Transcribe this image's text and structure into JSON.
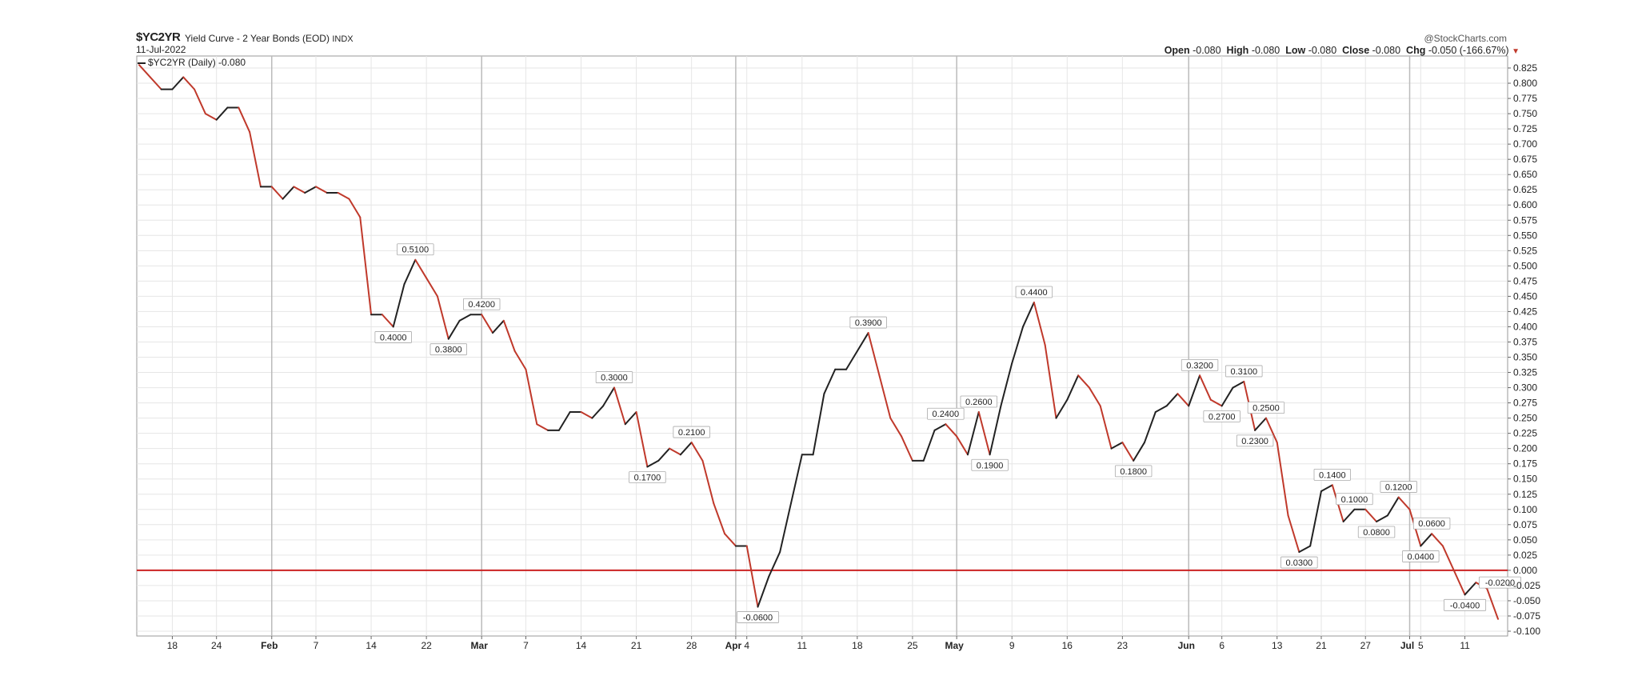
{
  "header": {
    "symbol": "$YC2YR",
    "title": "Yield Curve - 2 Year Bonds (EOD)",
    "exchange": "INDX",
    "date": "11-Jul-2022",
    "brand": "@StockCharts.com",
    "open_label": "Open",
    "open_value": "-0.080",
    "high_label": "High",
    "high_value": "-0.080",
    "low_label": "Low",
    "low_value": "-0.080",
    "close_label": "Close",
    "close_value": "-0.080",
    "chg_label": "Chg",
    "chg_value": "-0.050 (-166.67%)",
    "chg_arrow": "▼"
  },
  "legend": {
    "label": "$YC2YR (Daily) -0.080"
  },
  "colors": {
    "up": "#222222",
    "down": "#c0392b",
    "zero_line": "#cc2222",
    "grid": "#e6e6e6",
    "month_grid": "#bbbbbb"
  },
  "chart_data": {
    "type": "line",
    "ylim": [
      -0.1,
      0.825
    ],
    "y_ticks": [
      "0.825",
      "0.800",
      "0.775",
      "0.750",
      "0.725",
      "0.700",
      "0.675",
      "0.650",
      "0.625",
      "0.600",
      "0.575",
      "0.550",
      "0.525",
      "0.500",
      "0.475",
      "0.450",
      "0.425",
      "0.400",
      "0.375",
      "0.350",
      "0.325",
      "0.300",
      "0.275",
      "0.250",
      "0.225",
      "0.200",
      "0.175",
      "0.150",
      "0.125",
      "0.100",
      "0.075",
      "0.050",
      "0.025",
      "0.000",
      "-0.025",
      "-0.050",
      "-0.075",
      "-0.100"
    ],
    "x_ticks": [
      {
        "label": "18",
        "i": 3
      },
      {
        "label": "24",
        "i": 7
      },
      {
        "label": "Feb",
        "i": 12,
        "bold": true
      },
      {
        "label": "7",
        "i": 16
      },
      {
        "label": "14",
        "i": 21
      },
      {
        "label": "22",
        "i": 26
      },
      {
        "label": "Mar",
        "i": 31,
        "bold": true
      },
      {
        "label": "7",
        "i": 35
      },
      {
        "label": "14",
        "i": 40
      },
      {
        "label": "21",
        "i": 45
      },
      {
        "label": "28",
        "i": 50
      },
      {
        "label": "Apr",
        "i": 54,
        "bold": true
      },
      {
        "label": "4",
        "i": 55
      },
      {
        "label": "11",
        "i": 60
      },
      {
        "label": "18",
        "i": 65
      },
      {
        "label": "25",
        "i": 70
      },
      {
        "label": "May",
        "i": 74,
        "bold": true
      },
      {
        "label": "9",
        "i": 79
      },
      {
        "label": "16",
        "i": 84
      },
      {
        "label": "23",
        "i": 89
      },
      {
        "label": "Jun",
        "i": 95,
        "bold": true
      },
      {
        "label": "6",
        "i": 98
      },
      {
        "label": "13",
        "i": 103
      },
      {
        "label": "21",
        "i": 107
      },
      {
        "label": "27",
        "i": 111
      },
      {
        "label": "Jul",
        "i": 115,
        "bold": true
      },
      {
        "label": "5",
        "i": 116
      },
      {
        "label": "11",
        "i": 120
      }
    ],
    "values": [
      0.83,
      0.81,
      0.79,
      0.79,
      0.81,
      0.79,
      0.75,
      0.74,
      0.76,
      0.76,
      0.72,
      0.63,
      0.63,
      0.61,
      0.63,
      0.62,
      0.63,
      0.62,
      0.62,
      0.61,
      0.58,
      0.42,
      0.42,
      0.4,
      0.47,
      0.51,
      0.48,
      0.45,
      0.38,
      0.41,
      0.42,
      0.42,
      0.39,
      0.41,
      0.36,
      0.33,
      0.24,
      0.23,
      0.23,
      0.26,
      0.26,
      0.25,
      0.27,
      0.3,
      0.24,
      0.26,
      0.17,
      0.18,
      0.2,
      0.19,
      0.21,
      0.18,
      0.11,
      0.06,
      0.04,
      0.04,
      -0.06,
      -0.01,
      0.03,
      0.11,
      0.19,
      0.19,
      0.29,
      0.33,
      0.33,
      0.36,
      0.39,
      0.32,
      0.25,
      0.22,
      0.18,
      0.18,
      0.23,
      0.24,
      0.22,
      0.19,
      0.26,
      0.19,
      0.27,
      0.34,
      0.4,
      0.44,
      0.37,
      0.25,
      0.28,
      0.32,
      0.3,
      0.27,
      0.2,
      0.21,
      0.18,
      0.21,
      0.26,
      0.27,
      0.29,
      0.27,
      0.32,
      0.28,
      0.27,
      0.3,
      0.31,
      0.23,
      0.25,
      0.21,
      0.09,
      0.03,
      0.04,
      0.13,
      0.14,
      0.08,
      0.1,
      0.1,
      0.08,
      0.09,
      0.12,
      0.1,
      0.04,
      0.06,
      0.04,
      0.0,
      -0.04,
      -0.02,
      -0.03,
      -0.08
    ],
    "annotations": [
      {
        "i": 25,
        "label": "0.5100",
        "pos": "above"
      },
      {
        "i": 23,
        "label": "0.4000",
        "pos": "below"
      },
      {
        "i": 28,
        "label": "0.3800",
        "pos": "below"
      },
      {
        "i": 31,
        "label": "0.4200",
        "pos": "above"
      },
      {
        "i": 43,
        "label": "0.3000",
        "pos": "above"
      },
      {
        "i": 46,
        "label": "0.1700",
        "pos": "below"
      },
      {
        "i": 50,
        "label": "0.2100",
        "pos": "above"
      },
      {
        "i": 56,
        "label": "-0.0600",
        "pos": "below"
      },
      {
        "i": 66,
        "label": "0.3900",
        "pos": "above"
      },
      {
        "i": 73,
        "label": "0.2400",
        "pos": "above"
      },
      {
        "i": 76,
        "label": "0.2600",
        "pos": "above"
      },
      {
        "i": 77,
        "label": "0.1900",
        "pos": "below"
      },
      {
        "i": 81,
        "label": "0.4400",
        "pos": "above"
      },
      {
        "i": 90,
        "label": "0.1800",
        "pos": "below"
      },
      {
        "i": 96,
        "label": "0.3200",
        "pos": "above"
      },
      {
        "i": 98,
        "label": "0.2700",
        "pos": "below"
      },
      {
        "i": 100,
        "label": "0.3100",
        "pos": "above"
      },
      {
        "i": 101,
        "label": "0.2300",
        "pos": "below"
      },
      {
        "i": 102,
        "label": "0.2500",
        "pos": "above"
      },
      {
        "i": 105,
        "label": "0.0300",
        "pos": "below"
      },
      {
        "i": 108,
        "label": "0.1400",
        "pos": "above"
      },
      {
        "i": 110,
        "label": "0.1000",
        "pos": "above"
      },
      {
        "i": 112,
        "label": "0.0800",
        "pos": "below"
      },
      {
        "i": 114,
        "label": "0.1200",
        "pos": "above"
      },
      {
        "i": 116,
        "label": "0.0400",
        "pos": "below"
      },
      {
        "i": 117,
        "label": "0.0600",
        "pos": "above"
      },
      {
        "i": 121,
        "label": "-0.0200",
        "pos": "right"
      },
      {
        "i": 120,
        "label": "-0.0400",
        "pos": "below"
      }
    ],
    "zero_line": 0.0,
    "grid": true,
    "legend_position": "top-left"
  }
}
